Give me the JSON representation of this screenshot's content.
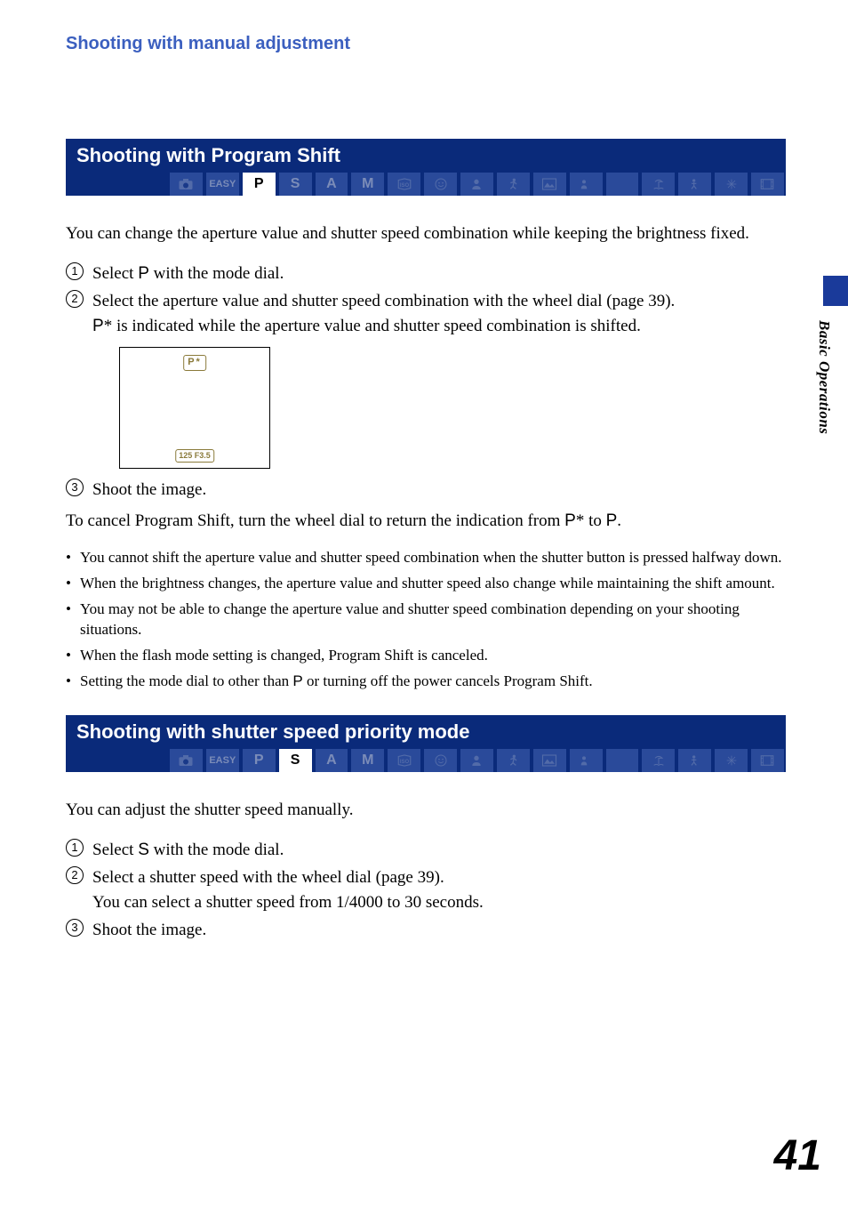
{
  "chapterTitle": "Shooting with manual adjustment",
  "sideTabLabel": "Basic Operations",
  "pageNumber": "41",
  "section1": {
    "title": "Shooting with Program Shift",
    "modes": [
      {
        "kind": "icon",
        "name": "camera",
        "svg": "camera",
        "active": false
      },
      {
        "kind": "text",
        "label": "EASY",
        "cls": "easy",
        "active": false
      },
      {
        "kind": "text",
        "label": "P",
        "active": true
      },
      {
        "kind": "text",
        "label": "S",
        "active": false
      },
      {
        "kind": "text",
        "label": "A",
        "active": false
      },
      {
        "kind": "text",
        "label": "M",
        "active": false
      },
      {
        "kind": "icon",
        "name": "iso",
        "svg": "iso",
        "active": false
      },
      {
        "kind": "icon",
        "name": "smile",
        "svg": "smile",
        "active": false
      },
      {
        "kind": "icon",
        "name": "portrait",
        "svg": "portrait",
        "active": false
      },
      {
        "kind": "icon",
        "name": "sports",
        "svg": "sports",
        "active": false
      },
      {
        "kind": "icon",
        "name": "landscape",
        "svg": "landscape",
        "active": false
      },
      {
        "kind": "icon",
        "name": "nightportrait",
        "svg": "nightportrait",
        "active": false
      },
      {
        "kind": "icon",
        "name": "night",
        "svg": "night",
        "active": false
      },
      {
        "kind": "icon",
        "name": "beach",
        "svg": "beach",
        "active": false
      },
      {
        "kind": "icon",
        "name": "snow",
        "svg": "snow",
        "active": false
      },
      {
        "kind": "icon",
        "name": "fireworks",
        "svg": "fireworks",
        "active": false
      },
      {
        "kind": "icon",
        "name": "movie",
        "svg": "movie",
        "active": false
      }
    ],
    "intro": "You can change the aperture value and shutter speed combination while keeping the brightness fixed.",
    "steps": [
      {
        "n": "1",
        "pre": "Select ",
        "mode": "P",
        "post": " with the mode dial."
      },
      {
        "n": "2",
        "pre": "Select the aperture value and shutter speed combination with the wheel dial (page 39).",
        "line2pre": "",
        "line2mode": "P",
        "line2post": "* is indicated while the aperture value and shutter speed combination is shifted.",
        "hasLcd": true
      },
      {
        "n": "3",
        "pre": "Shoot the image."
      }
    ],
    "lcd": {
      "pstar": "P*",
      "speed": "125  F3.5"
    },
    "cancelPre": "To cancel Program Shift, turn the wheel dial to return the indication from ",
    "cancelMid1": "P",
    "cancelMid2": "* to ",
    "cancelMid3": "P",
    "cancelPost": ".",
    "bullets": [
      "You cannot shift the aperture value and shutter speed combination when the shutter button is pressed halfway down.",
      "When the brightness changes, the aperture value and shutter speed also change while maintaining the shift amount.",
      "You may not be able to change the aperture value and shutter speed combination depending on your shooting situations.",
      "When the flash mode setting is changed, Program Shift is canceled."
    ],
    "lastBulletPre": "Setting the mode dial to other than ",
    "lastBulletMode": "P",
    "lastBulletPost": " or turning off the power cancels Program Shift."
  },
  "section2": {
    "title": "Shooting with shutter speed priority mode",
    "modes": [
      {
        "kind": "icon",
        "name": "camera",
        "svg": "camera",
        "active": false
      },
      {
        "kind": "text",
        "label": "EASY",
        "cls": "easy",
        "active": false
      },
      {
        "kind": "text",
        "label": "P",
        "active": false
      },
      {
        "kind": "text",
        "label": "S",
        "active": true
      },
      {
        "kind": "text",
        "label": "A",
        "active": false
      },
      {
        "kind": "text",
        "label": "M",
        "active": false
      },
      {
        "kind": "icon",
        "name": "iso",
        "svg": "iso",
        "active": false
      },
      {
        "kind": "icon",
        "name": "smile",
        "svg": "smile",
        "active": false
      },
      {
        "kind": "icon",
        "name": "portrait",
        "svg": "portrait",
        "active": false
      },
      {
        "kind": "icon",
        "name": "sports",
        "svg": "sports",
        "active": false
      },
      {
        "kind": "icon",
        "name": "landscape",
        "svg": "landscape",
        "active": false
      },
      {
        "kind": "icon",
        "name": "nightportrait",
        "svg": "nightportrait",
        "active": false
      },
      {
        "kind": "icon",
        "name": "night",
        "svg": "night",
        "active": false
      },
      {
        "kind": "icon",
        "name": "beach",
        "svg": "beach",
        "active": false
      },
      {
        "kind": "icon",
        "name": "snow",
        "svg": "snow",
        "active": false
      },
      {
        "kind": "icon",
        "name": "fireworks",
        "svg": "fireworks",
        "active": false
      },
      {
        "kind": "icon",
        "name": "movie",
        "svg": "movie",
        "active": false
      }
    ],
    "intro": "You can adjust the shutter speed manually.",
    "steps": [
      {
        "n": "1",
        "pre": "Select ",
        "mode": "S",
        "post": " with the mode dial."
      },
      {
        "n": "2",
        "pre": "Select a shutter speed with the wheel dial (page 39).",
        "line2plain": "You can select a shutter speed from 1/4000 to 30 seconds."
      },
      {
        "n": "3",
        "pre": "Shoot the image."
      }
    ]
  }
}
